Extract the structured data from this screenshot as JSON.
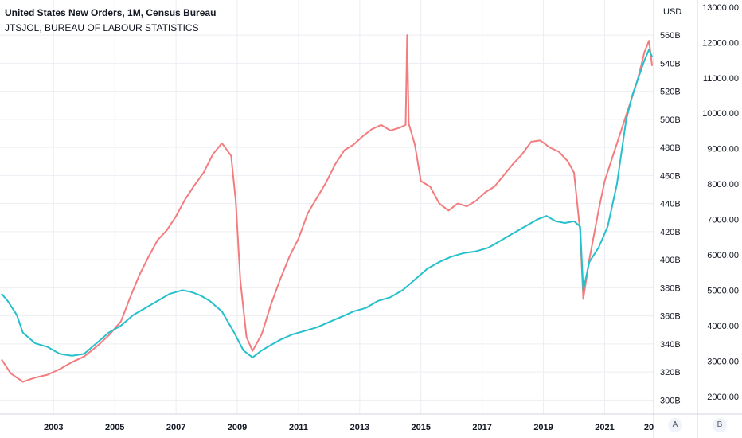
{
  "legend": {
    "series_a": "United States New Orders, 1M, Census Bureau",
    "series_b": "JTSJOL, BUREAU OF LABOUR STATISTICS"
  },
  "left_axis": {
    "unit_label": "USD"
  },
  "axis_buttons": {
    "a": "A",
    "b": "B"
  },
  "colors": {
    "orders": "#f37c7e",
    "jolts": "#26c0cd",
    "grid": "#eceef2",
    "border": "#d1d4dc"
  },
  "chart_data": {
    "type": "line",
    "title": "",
    "x_axis": {
      "type": "time",
      "range": [
        2001.25,
        2022.6
      ],
      "ticks": [
        "2003",
        "2005",
        "2007",
        "2009",
        "2011",
        "2013",
        "2015",
        "2017",
        "2019",
        "2021",
        "20"
      ]
    },
    "left_axis": {
      "range": [
        290,
        585
      ],
      "ticks": [
        "300B",
        "320B",
        "340B",
        "360B",
        "380B",
        "400B",
        "420B",
        "440B",
        "460B",
        "480B",
        "500B",
        "520B",
        "540B",
        "560B"
      ]
    },
    "right_axis": {
      "range": [
        1500,
        13200
      ],
      "ticks": [
        "2000.00",
        "3000.00",
        "4000.00",
        "5000.00",
        "6000.00",
        "7000.00",
        "8000.00",
        "9000.00",
        "10000.00",
        "11000.00",
        "12000.00",
        "13000.00"
      ]
    },
    "series": [
      {
        "name": "United States New Orders, 1M, Census Bureau",
        "axis": "left",
        "x": [
          2001.3,
          2001.6,
          2002.0,
          2002.4,
          2002.8,
          2003.2,
          2003.6,
          2004.0,
          2004.4,
          2004.8,
          2005.2,
          2005.5,
          2005.8,
          2006.1,
          2006.4,
          2006.7,
          2007.0,
          2007.3,
          2007.6,
          2007.9,
          2008.2,
          2008.5,
          2008.8,
          2008.95,
          2009.1,
          2009.3,
          2009.5,
          2009.8,
          2010.1,
          2010.4,
          2010.7,
          2011.0,
          2011.3,
          2011.6,
          2011.9,
          2012.2,
          2012.5,
          2012.8,
          2013.1,
          2013.4,
          2013.7,
          2014.0,
          2014.3,
          2014.5,
          2014.55,
          2014.6,
          2014.8,
          2015.0,
          2015.3,
          2015.6,
          2015.9,
          2016.2,
          2016.5,
          2016.8,
          2017.1,
          2017.4,
          2017.7,
          2018.0,
          2018.3,
          2018.6,
          2018.9,
          2019.2,
          2019.5,
          2019.8,
          2020.0,
          2020.2,
          2020.3,
          2020.5,
          2020.8,
          2021.0,
          2021.3,
          2021.6,
          2021.9,
          2022.1,
          2022.3,
          2022.45,
          2022.55
        ],
        "values": [
          329,
          319,
          313,
          316,
          318,
          322,
          327,
          331,
          338,
          346,
          356,
          373,
          389,
          402,
          414,
          421,
          431,
          443,
          453,
          462,
          475,
          483,
          474,
          442,
          385,
          345,
          335,
          347,
          368,
          386,
          402,
          415,
          433,
          444,
          455,
          468,
          478,
          482,
          488,
          493,
          496,
          492,
          494,
          496,
          560,
          497,
          482,
          456,
          452,
          440,
          435,
          440,
          438,
          442,
          448,
          452,
          460,
          468,
          475,
          484,
          485,
          480,
          477,
          470,
          462,
          420,
          372,
          400,
          435,
          456,
          476,
          496,
          516,
          530,
          548,
          556,
          538
        ]
      },
      {
        "name": "JTSJOL, BUREAU OF LABOUR STATISTICS",
        "axis": "right",
        "x": [
          2001.3,
          2001.5,
          2001.8,
          2002.0,
          2002.4,
          2002.8,
          2003.2,
          2003.6,
          2004.0,
          2004.4,
          2004.8,
          2005.2,
          2005.6,
          2006.0,
          2006.4,
          2006.8,
          2007.2,
          2007.5,
          2007.8,
          2008.1,
          2008.5,
          2008.9,
          2009.2,
          2009.5,
          2009.8,
          2010.1,
          2010.4,
          2010.8,
          2011.2,
          2011.6,
          2012.0,
          2012.4,
          2012.8,
          2013.2,
          2013.6,
          2014.0,
          2014.4,
          2014.8,
          2015.2,
          2015.6,
          2016.0,
          2016.4,
          2016.8,
          2017.2,
          2017.6,
          2018.0,
          2018.4,
          2018.8,
          2019.1,
          2019.4,
          2019.7,
          2020.0,
          2020.2,
          2020.3,
          2020.5,
          2020.8,
          2021.1,
          2021.4,
          2021.7,
          2021.9,
          2022.1,
          2022.3,
          2022.45,
          2022.55
        ],
        "values": [
          4900,
          4700,
          4300,
          3800,
          3500,
          3400,
          3200,
          3150,
          3200,
          3500,
          3800,
          4000,
          4300,
          4500,
          4700,
          4900,
          5000,
          4950,
          4850,
          4700,
          4400,
          3800,
          3300,
          3100,
          3300,
          3450,
          3600,
          3750,
          3850,
          3950,
          4100,
          4250,
          4400,
          4500,
          4700,
          4800,
          5000,
          5300,
          5600,
          5800,
          5950,
          6050,
          6100,
          6200,
          6400,
          6600,
          6800,
          7000,
          7100,
          6950,
          6900,
          6950,
          6800,
          5000,
          5800,
          6200,
          6800,
          8000,
          9800,
          10500,
          11000,
          11500,
          11800,
          11600
        ]
      }
    ]
  }
}
